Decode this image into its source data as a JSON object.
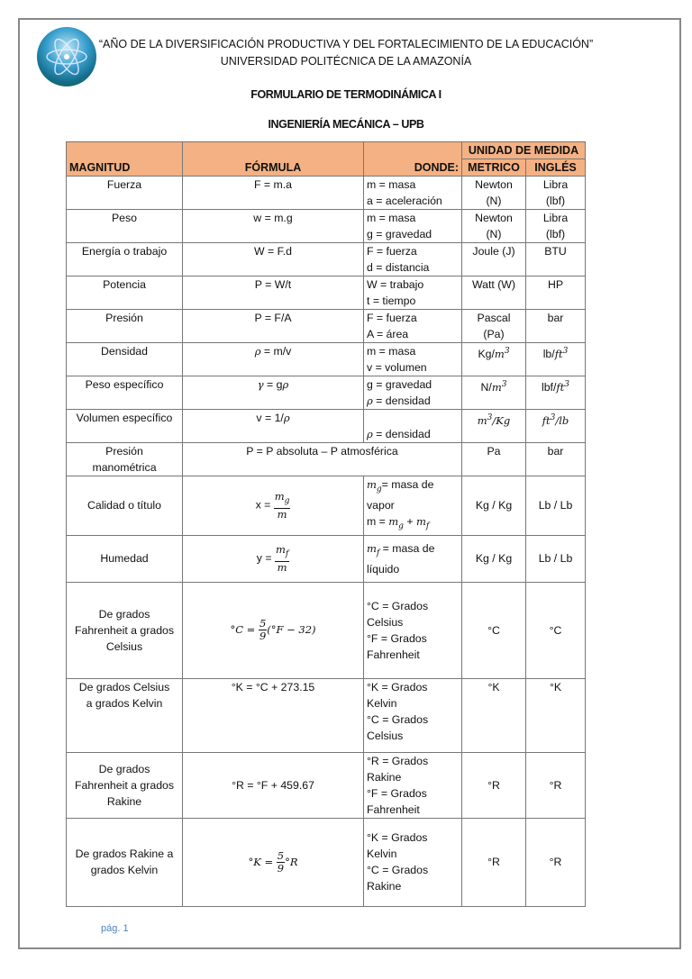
{
  "header": {
    "line1": "“AÑO DE LA DIVERSIFICACIÓN PRODUCTIVA Y DEL FORTALECIMIENTO DE LA EDUCACIÓN”",
    "line2": "UNIVERSIDAD POLITÉCNICA DE LA AMAZONÍA",
    "title": "FORMULARIO DE TERMODINÁMICA I",
    "subtitle": "INGENIERÍA MECÁNICA – UPB",
    "logo_icon": "atom-logo-icon"
  },
  "colors": {
    "header_fill": "#f4b183",
    "footer_text": "#4f81bd"
  },
  "table": {
    "headers": {
      "magnitud": "MAGNITUD",
      "formula": "FÓRMULA",
      "donde": "DONDE:",
      "unidad": "UNIDAD DE MEDIDA",
      "metrico": "METRICO",
      "ingles": "INGLÉS"
    },
    "rows": [
      {
        "magnitud": [
          "Fuerza"
        ],
        "formula": [
          "F = m.a"
        ],
        "donde": [
          "m = masa",
          "a = aceleración"
        ],
        "metrico": [
          "Newton",
          "(N)"
        ],
        "ingles": [
          "Libra",
          "(lbf)"
        ]
      },
      {
        "magnitud": [
          "Peso"
        ],
        "formula": [
          "w = m.g"
        ],
        "donde": [
          "m = masa",
          "g = gravedad"
        ],
        "metrico": [
          "Newton",
          "(N)"
        ],
        "ingles": [
          "Libra",
          "(lbf)"
        ]
      },
      {
        "magnitud": [
          "Energía o trabajo"
        ],
        "formula": [
          "W = F.d"
        ],
        "donde": [
          "F = fuerza",
          "d = distancia"
        ],
        "metrico": [
          "Joule (J)"
        ],
        "ingles": [
          "BTU"
        ]
      },
      {
        "magnitud": [
          "Potencia"
        ],
        "formula": [
          "P = W/t"
        ],
        "donde": [
          "W = trabajo",
          "t = tiempo"
        ],
        "metrico": [
          "Watt (W)"
        ],
        "ingles": [
          "HP"
        ]
      },
      {
        "magnitud": [
          "Presión"
        ],
        "formula": [
          "P = F/A"
        ],
        "donde": [
          "F = fuerza",
          "A = área"
        ],
        "metrico": [
          "Pascal",
          "(Pa)"
        ],
        "ingles": [
          "bar"
        ]
      },
      {
        "magnitud": [
          "Densidad"
        ],
        "formula": [
          [
            {
              "m": "ρ"
            },
            " = m/v"
          ]
        ],
        "donde": [
          "m = masa",
          "v = volumen"
        ],
        "metrico": [
          [
            "Kg/",
            {
              "m": "m"
            },
            {
              "sup": "3"
            }
          ]
        ],
        "ingles": [
          [
            "lb/",
            {
              "m": "ft"
            },
            {
              "sup": "3"
            }
          ]
        ]
      },
      {
        "magnitud": [
          "Peso específico"
        ],
        "formula": [
          [
            {
              "m": "γ"
            },
            " = g",
            {
              "m": "ρ"
            }
          ]
        ],
        "donde": [
          "g = gravedad",
          [
            {
              "m": "ρ"
            },
            " = densidad"
          ]
        ],
        "metrico": [
          [
            "N/",
            {
              "m": "m"
            },
            {
              "sup": "3"
            }
          ]
        ],
        "ingles": [
          [
            "lbf/",
            {
              "m": "ft"
            },
            {
              "sup": "3"
            }
          ]
        ]
      },
      {
        "magnitud": [
          "Volumen específico"
        ],
        "formula": [
          [
            "v = 1/",
            {
              "m": "ρ"
            }
          ]
        ],
        "donde": [
          "",
          [
            {
              "m": "ρ"
            },
            " = densidad"
          ]
        ],
        "metrico": [
          [
            {
              "m": "m"
            },
            {
              "sup": "3"
            },
            {
              "m": "/Kg"
            }
          ]
        ],
        "ingles": [
          [
            {
              "m": "ft"
            },
            {
              "sup": "3"
            },
            {
              "m": "/lb"
            }
          ]
        ]
      },
      {
        "magnitud": [
          "Presión",
          "manométrica"
        ],
        "formula": [
          "P = P absoluta – P atmosférica"
        ],
        "metrico": [
          "Pa"
        ],
        "ingles": [
          "bar"
        ],
        "span": true
      },
      {
        "magnitud": [
          "Calidad o título"
        ],
        "formula": [
          [
            "x = ",
            {
              "frac": [
                [
                  {
                    "m": "m"
                  },
                  {
                    "sub": "g"
                  }
                ],
                [
                  {
                    "m": "m"
                  }
                ]
              ]
            }
          ]
        ],
        "donde": [
          [
            {
              "m": "m"
            },
            {
              "sub": "g"
            },
            "= masa de"
          ],
          "vapor",
          [
            "m = ",
            {
              "m": "m"
            },
            {
              "sub": "g"
            },
            " + ",
            {
              "m": "m"
            },
            {
              "sub": "f"
            }
          ]
        ],
        "metrico": [
          "Kg / Kg"
        ],
        "ingles": [
          "Lb / Lb"
        ]
      },
      {
        "magnitud": [
          "Humedad"
        ],
        "formula": [
          [
            "y = ",
            {
              "frac": [
                [
                  {
                    "m": "m"
                  },
                  {
                    "sub": "f"
                  }
                ],
                [
                  {
                    "m": "m"
                  }
                ]
              ]
            }
          ]
        ],
        "donde": [
          [
            {
              "m": "m"
            },
            {
              "sub": "f"
            },
            " = masa de"
          ],
          "líquido"
        ],
        "metrico": [
          "Kg / Kg"
        ],
        "ingles": [
          "Lb / Lb"
        ]
      },
      {
        "magnitud": [
          "De grados",
          "Fahrenheit a grados",
          "Celsius"
        ],
        "formula": [
          [
            {
              "m": "°C = "
            },
            {
              "frac": [
                [
                  "5"
                ],
                [
                  "9"
                ]
              ]
            },
            {
              "m": "(°F − 32)"
            }
          ]
        ],
        "donde": [
          "°C = Grados",
          "Celsius",
          "°F = Grados",
          "Fahrenheit"
        ],
        "metrico": [
          "°C"
        ],
        "ingles": [
          "°C"
        ]
      },
      {
        "magnitud": [
          "De grados Celsius",
          "a grados Kelvin"
        ],
        "formula": [
          "°K = °C + 273.15"
        ],
        "donde": [
          "°K = Grados",
          "Kelvin",
          "°C = Grados",
          "Celsius"
        ],
        "metrico": [
          "°K"
        ],
        "ingles": [
          "°K"
        ]
      },
      {
        "magnitud": [
          "De grados",
          "Fahrenheit a grados",
          "Rakine"
        ],
        "formula": [
          "°R = °F + 459.67"
        ],
        "donde": [
          "°R = Grados",
          "Rakine",
          "°F = Grados",
          "Fahrenheit"
        ],
        "metrico": [
          "°R"
        ],
        "ingles": [
          "°R"
        ]
      },
      {
        "magnitud": [
          "De grados Rakine a",
          "grados Kelvin"
        ],
        "formula": [
          [
            {
              "m": "°K = "
            },
            {
              "frac": [
                [
                  "5"
                ],
                [
                  "9"
                ]
              ]
            },
            {
              "m": "°R"
            }
          ]
        ],
        "donde": [
          "°K = Grados",
          "Kelvin",
          "°C = Grados",
          "Rakine"
        ],
        "metrico": [
          "°R"
        ],
        "ingles": [
          "°R"
        ]
      }
    ]
  },
  "footer": {
    "page": "pág. 1"
  }
}
